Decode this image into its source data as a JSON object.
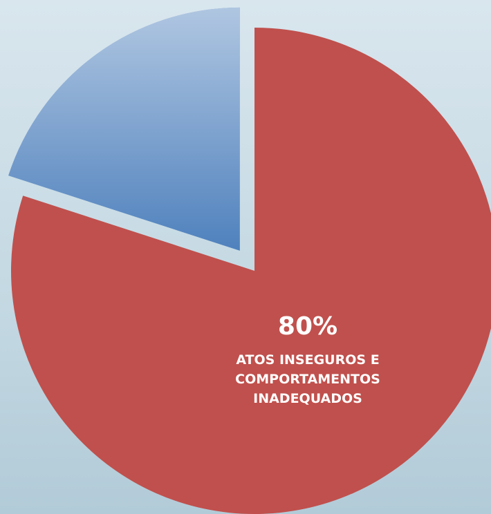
{
  "chart_data": {
    "type": "pie",
    "categories": [
      "ATOS INSEGUROS E COMPORTAMENTOS INADEQUADOS",
      null
    ],
    "values": [
      80,
      20
    ],
    "value_labels": [
      "80%",
      null
    ],
    "colors": [
      "#c0504d",
      "#4f81bd"
    ],
    "exploded": [
      false,
      true
    ]
  }
}
